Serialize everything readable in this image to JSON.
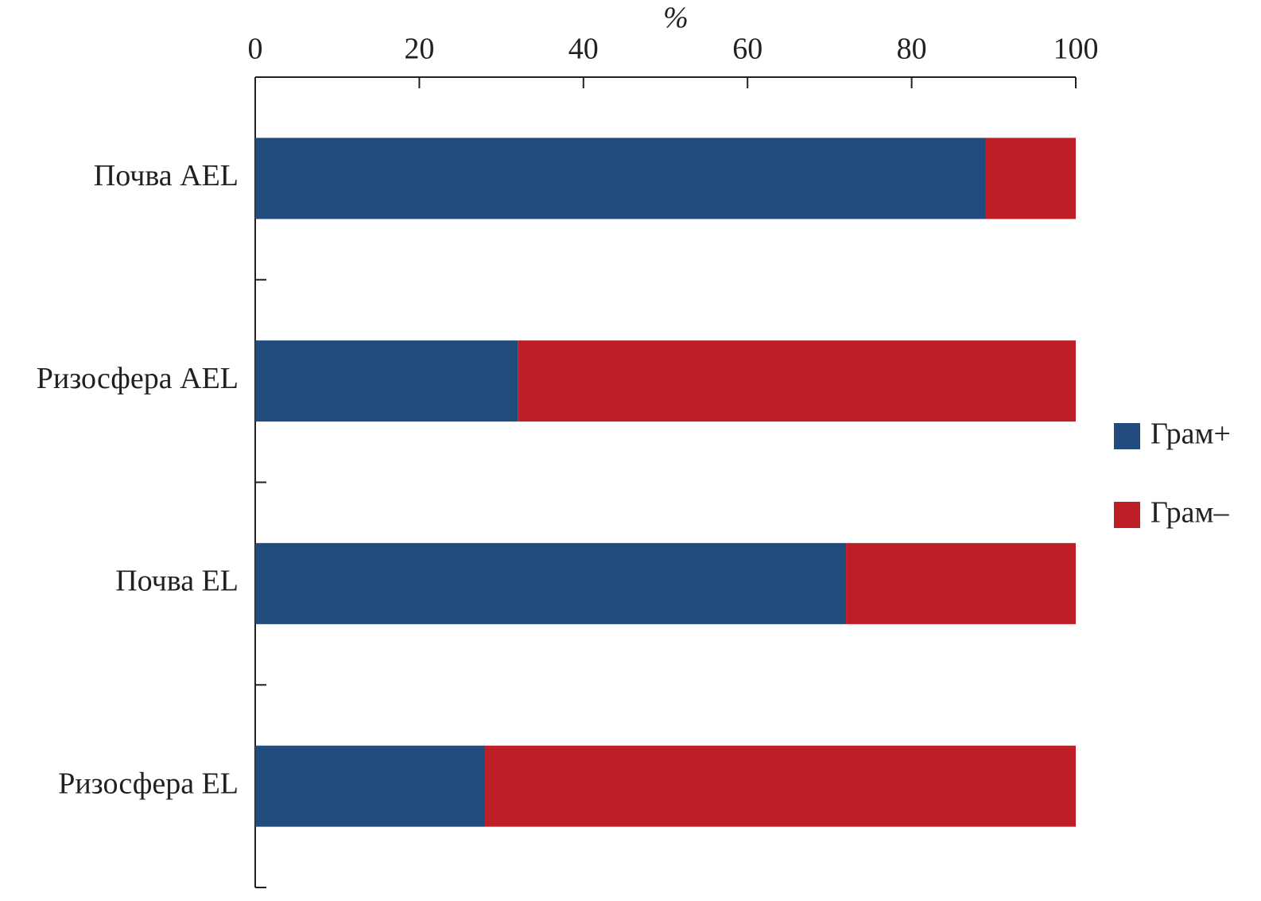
{
  "chart_data": {
    "type": "bar",
    "orientation": "horizontal",
    "stacked": true,
    "xlabel": "%",
    "categories": [
      "Почва  AEL",
      "Ризосфера  AEL",
      "Почва EL",
      "Ризосфера EL"
    ],
    "series": [
      {
        "name": "Грам+",
        "color": "#204b7c",
        "values": [
          89,
          32,
          72,
          28
        ]
      },
      {
        "name": "Грам–",
        "color": "#be1f27",
        "values": [
          11,
          68,
          28,
          72
        ]
      }
    ],
    "xlim": [
      0,
      100
    ],
    "xticks": [
      0,
      20,
      40,
      60,
      80,
      100
    ],
    "legend": "right"
  }
}
